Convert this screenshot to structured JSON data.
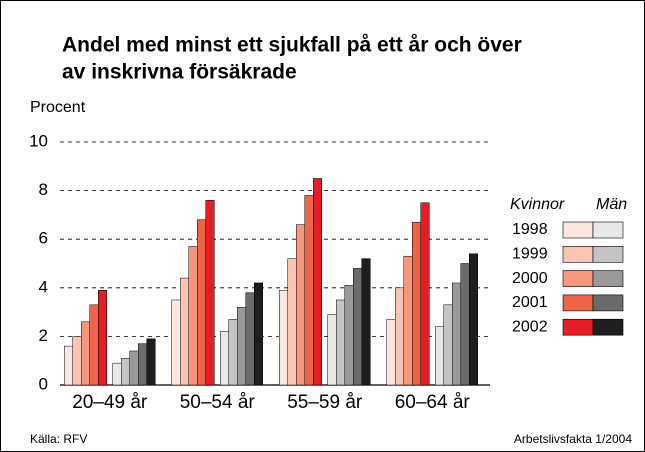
{
  "chart_data": {
    "type": "grouped_bar",
    "title_lines": [
      "Andel med minst ett sjukfall på ett år och över",
      "av inskrivna försäkrade"
    ],
    "y_axis_label": "Procent",
    "categories": [
      "20–49 år",
      "50–54 år",
      "55–59 år",
      "60–64 år"
    ],
    "legend_rows": [
      "1998",
      "1999",
      "2000",
      "2001",
      "2002"
    ],
    "groups": [
      {
        "name": "Kvinnor",
        "series": [
          {
            "color": "#fde6df",
            "values": [
              1.6,
              3.5,
              3.9,
              2.7
            ]
          },
          {
            "color": "#f9c4b4",
            "values": [
              2.0,
              4.4,
              5.2,
              4.0
            ]
          },
          {
            "color": "#f4977e",
            "values": [
              2.6,
              5.7,
              6.6,
              5.3
            ]
          },
          {
            "color": "#ec6548",
            "values": [
              3.3,
              6.8,
              7.8,
              6.7
            ]
          },
          {
            "color": "#e31e25",
            "values": [
              3.9,
              7.6,
              8.5,
              7.5
            ]
          }
        ]
      },
      {
        "name": "Män",
        "series": [
          {
            "color": "#e8e8e8",
            "values": [
              0.9,
              2.2,
              2.9,
              2.4
            ]
          },
          {
            "color": "#c4c4c4",
            "values": [
              1.1,
              2.7,
              3.5,
              3.3
            ]
          },
          {
            "color": "#9a9a9a",
            "values": [
              1.4,
              3.2,
              4.1,
              4.2
            ]
          },
          {
            "color": "#6b6b6b",
            "values": [
              1.7,
              3.8,
              4.8,
              5.0
            ]
          },
          {
            "color": "#1e1e1e",
            "values": [
              1.9,
              4.2,
              5.2,
              5.4
            ]
          }
        ]
      }
    ],
    "ylim": [
      0,
      10
    ],
    "yticks": [
      0,
      2,
      4,
      6,
      8,
      10
    ],
    "grid": true,
    "source": "Källa: RFV",
    "credit": "Arbetslivsfakta 1/2004"
  }
}
